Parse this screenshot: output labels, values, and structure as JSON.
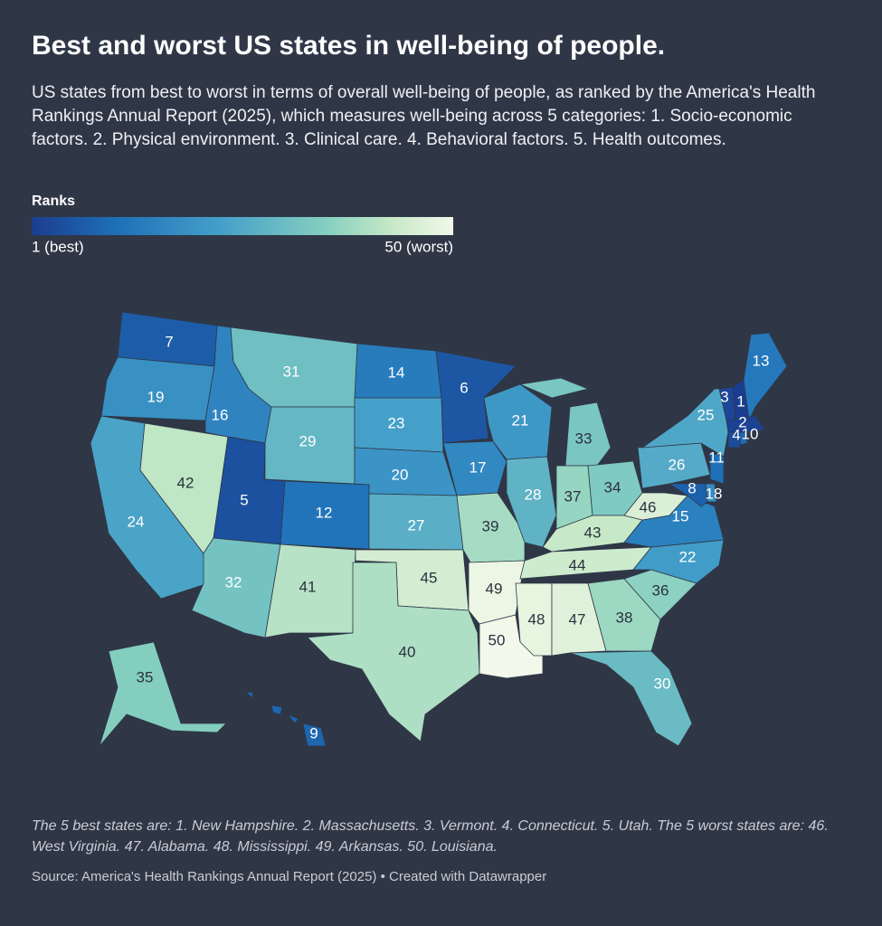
{
  "chart_data": {
    "type": "choropleth",
    "title": "Best and worst US states in well-being of people.",
    "subtitle": "US states from best to worst in terms of overall well-being of people, as ranked by the America's Health Rankings Annual Report (2025), which measures well-being across 5 categories: 1. Socio-economic factors. 2. Physical environment. 3. Clinical care. 4. Behavioral factors. 5. Health outcomes.",
    "legend_title": "Ranks",
    "colorlim": [
      1,
      50
    ],
    "colorticks": [
      {
        "value": 1,
        "label": "1 (best)"
      },
      {
        "value": 50,
        "label": "50 (worst)"
      }
    ],
    "values": [
      7,
      19,
      24,
      42,
      16,
      31,
      29,
      5,
      12,
      32,
      41,
      14,
      23,
      20,
      27,
      45,
      40,
      6,
      17,
      39,
      49,
      50,
      21,
      28,
      33,
      37,
      34,
      43,
      44,
      48,
      47,
      38,
      30,
      36,
      22,
      15,
      46,
      26,
      25,
      3,
      1,
      13,
      2,
      4,
      10,
      11,
      18,
      8,
      35,
      9
    ],
    "note": "The 5 best states are: 1. New Hampshire. 2. Massachusetts. 3. Vermont. 4. Connecticut. 5. Utah. The 5 worst states are: 46. West Virginia. 47. Alabama. 48. Mississippi. 49. Arkansas. 50. Louisiana.",
    "source": "Source: America's Health Rankings Annual Report (2025) • Created with Datawrapper"
  }
}
